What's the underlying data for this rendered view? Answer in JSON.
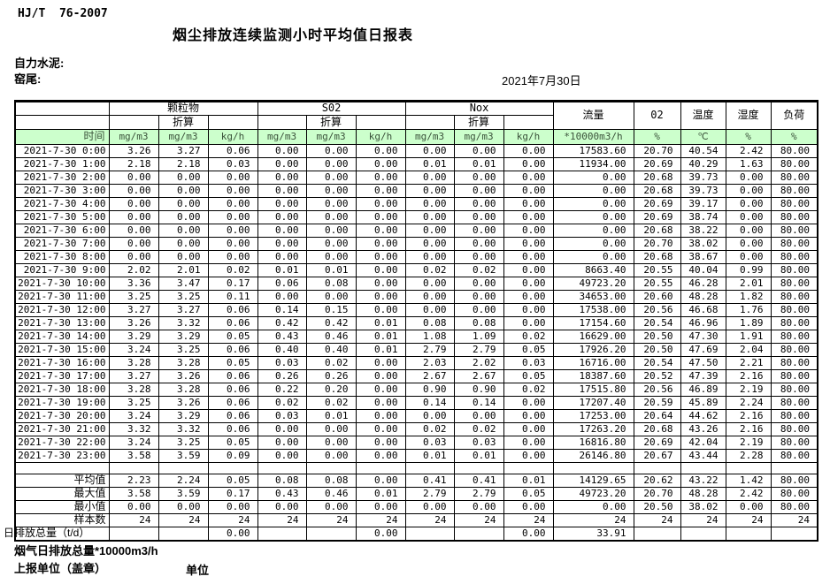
{
  "header": {
    "standard": "HJ/T  76-2007",
    "title": "烟尘排放连续监测小时平均值日报表",
    "company": "自力水泥:",
    "site": "窑尾:",
    "date": "2021年7月30日"
  },
  "table": {
    "group_headers": {
      "time": "时间",
      "pm": "颗粒物",
      "so2": "S02",
      "nox": "Nox",
      "converted": "折算",
      "flow": "流量",
      "o2": "02",
      "temperature": "温度",
      "humidity": "湿度",
      "load": "负荷"
    },
    "units": [
      "mg/m3",
      "mg/m3",
      "kg/h",
      "mg/m3",
      "mg/m3",
      "kg/h",
      "mg/m3",
      "mg/m3",
      "kg/h",
      "*10000m3/h",
      "%",
      "℃",
      "%",
      "%"
    ],
    "rows": [
      {
        "time": "2021-7-30 0:00",
        "values": [
          "3.26",
          "3.27",
          "0.06",
          "0.00",
          "0.00",
          "0.00",
          "0.00",
          "0.00",
          "0.00",
          "17583.60",
          "20.70",
          "40.54",
          "2.42",
          "80.00"
        ]
      },
      {
        "time": "2021-7-30 1:00",
        "values": [
          "2.18",
          "2.18",
          "0.03",
          "0.00",
          "0.00",
          "0.00",
          "0.01",
          "0.01",
          "0.00",
          "11934.00",
          "20.69",
          "40.29",
          "1.63",
          "80.00"
        ]
      },
      {
        "time": "2021-7-30 2:00",
        "values": [
          "0.00",
          "0.00",
          "0.00",
          "0.00",
          "0.00",
          "0.00",
          "0.00",
          "0.00",
          "0.00",
          "0.00",
          "20.68",
          "39.73",
          "0.00",
          "80.00"
        ]
      },
      {
        "time": "2021-7-30 3:00",
        "values": [
          "0.00",
          "0.00",
          "0.00",
          "0.00",
          "0.00",
          "0.00",
          "0.00",
          "0.00",
          "0.00",
          "0.00",
          "20.68",
          "39.73",
          "0.00",
          "80.00"
        ]
      },
      {
        "time": "2021-7-30 4:00",
        "values": [
          "0.00",
          "0.00",
          "0.00",
          "0.00",
          "0.00",
          "0.00",
          "0.00",
          "0.00",
          "0.00",
          "0.00",
          "20.69",
          "39.17",
          "0.00",
          "80.00"
        ]
      },
      {
        "time": "2021-7-30 5:00",
        "values": [
          "0.00",
          "0.00",
          "0.00",
          "0.00",
          "0.00",
          "0.00",
          "0.00",
          "0.00",
          "0.00",
          "0.00",
          "20.69",
          "38.74",
          "0.00",
          "80.00"
        ]
      },
      {
        "time": "2021-7-30 6:00",
        "values": [
          "0.00",
          "0.00",
          "0.00",
          "0.00",
          "0.00",
          "0.00",
          "0.00",
          "0.00",
          "0.00",
          "0.00",
          "20.68",
          "38.22",
          "0.00",
          "80.00"
        ]
      },
      {
        "time": "2021-7-30 7:00",
        "values": [
          "0.00",
          "0.00",
          "0.00",
          "0.00",
          "0.00",
          "0.00",
          "0.00",
          "0.00",
          "0.00",
          "0.00",
          "20.70",
          "38.02",
          "0.00",
          "80.00"
        ]
      },
      {
        "time": "2021-7-30 8:00",
        "values": [
          "0.00",
          "0.00",
          "0.00",
          "0.00",
          "0.00",
          "0.00",
          "0.00",
          "0.00",
          "0.00",
          "0.00",
          "20.68",
          "38.67",
          "0.00",
          "80.00"
        ]
      },
      {
        "time": "2021-7-30 9:00",
        "values": [
          "2.02",
          "2.01",
          "0.02",
          "0.01",
          "0.01",
          "0.00",
          "0.02",
          "0.02",
          "0.00",
          "8663.40",
          "20.55",
          "40.04",
          "0.99",
          "80.00"
        ]
      },
      {
        "time": "2021-7-30 10:00",
        "values": [
          "3.36",
          "3.47",
          "0.17",
          "0.06",
          "0.08",
          "0.00",
          "0.00",
          "0.00",
          "0.00",
          "49723.20",
          "20.55",
          "46.28",
          "2.01",
          "80.00"
        ]
      },
      {
        "time": "2021-7-30 11:00",
        "values": [
          "3.25",
          "3.25",
          "0.11",
          "0.00",
          "0.00",
          "0.00",
          "0.00",
          "0.00",
          "0.00",
          "34653.00",
          "20.60",
          "48.28",
          "1.82",
          "80.00"
        ]
      },
      {
        "time": "2021-7-30 12:00",
        "values": [
          "3.27",
          "3.27",
          "0.06",
          "0.14",
          "0.15",
          "0.00",
          "0.00",
          "0.00",
          "0.00",
          "17538.00",
          "20.56",
          "46.68",
          "1.76",
          "80.00"
        ]
      },
      {
        "time": "2021-7-30 13:00",
        "values": [
          "3.26",
          "3.32",
          "0.06",
          "0.42",
          "0.42",
          "0.01",
          "0.08",
          "0.08",
          "0.00",
          "17154.60",
          "20.54",
          "46.96",
          "1.89",
          "80.00"
        ]
      },
      {
        "time": "2021-7-30 14:00",
        "values": [
          "3.29",
          "3.29",
          "0.05",
          "0.43",
          "0.46",
          "0.01",
          "1.08",
          "1.09",
          "0.02",
          "16629.00",
          "20.50",
          "47.30",
          "1.91",
          "80.00"
        ]
      },
      {
        "time": "2021-7-30 15:00",
        "values": [
          "3.24",
          "3.25",
          "0.06",
          "0.40",
          "0.40",
          "0.01",
          "2.79",
          "2.79",
          "0.05",
          "17926.20",
          "20.50",
          "47.69",
          "2.04",
          "80.00"
        ]
      },
      {
        "time": "2021-7-30 16:00",
        "values": [
          "3.28",
          "3.28",
          "0.05",
          "0.03",
          "0.02",
          "0.00",
          "2.03",
          "2.02",
          "0.03",
          "16716.00",
          "20.54",
          "47.50",
          "2.21",
          "80.00"
        ]
      },
      {
        "time": "2021-7-30 17:00",
        "values": [
          "3.27",
          "3.26",
          "0.06",
          "0.26",
          "0.26",
          "0.00",
          "2.67",
          "2.67",
          "0.05",
          "18387.60",
          "20.52",
          "47.39",
          "2.16",
          "80.00"
        ]
      },
      {
        "time": "2021-7-30 18:00",
        "values": [
          "3.28",
          "3.28",
          "0.06",
          "0.22",
          "0.20",
          "0.00",
          "0.90",
          "0.90",
          "0.02",
          "17515.80",
          "20.56",
          "46.89",
          "2.19",
          "80.00"
        ]
      },
      {
        "time": "2021-7-30 19:00",
        "values": [
          "3.25",
          "3.26",
          "0.06",
          "0.02",
          "0.02",
          "0.00",
          "0.14",
          "0.14",
          "0.00",
          "17207.40",
          "20.59",
          "45.89",
          "2.24",
          "80.00"
        ]
      },
      {
        "time": "2021-7-30 20:00",
        "values": [
          "3.24",
          "3.29",
          "0.06",
          "0.03",
          "0.01",
          "0.00",
          "0.00",
          "0.00",
          "0.00",
          "17253.00",
          "20.64",
          "44.62",
          "2.16",
          "80.00"
        ]
      },
      {
        "time": "2021-7-30 21:00",
        "values": [
          "3.32",
          "3.32",
          "0.06",
          "0.00",
          "0.00",
          "0.00",
          "0.02",
          "0.02",
          "0.00",
          "17263.20",
          "20.68",
          "43.26",
          "2.16",
          "80.00"
        ]
      },
      {
        "time": "2021-7-30 22:00",
        "values": [
          "3.24",
          "3.25",
          "0.05",
          "0.00",
          "0.00",
          "0.00",
          "0.03",
          "0.03",
          "0.00",
          "16816.80",
          "20.69",
          "42.04",
          "2.19",
          "80.00"
        ]
      },
      {
        "time": "2021-7-30 23:00",
        "values": [
          "3.58",
          "3.59",
          "0.09",
          "0.00",
          "0.00",
          "0.00",
          "0.01",
          "0.01",
          "0.00",
          "26146.80",
          "20.67",
          "43.44",
          "2.28",
          "80.00"
        ]
      }
    ],
    "summary": [
      {
        "label": "平均值",
        "values": [
          "2.23",
          "2.24",
          "0.05",
          "0.08",
          "0.08",
          "0.00",
          "0.41",
          "0.41",
          "0.01",
          "14129.65",
          "20.62",
          "43.22",
          "1.42",
          "80.00"
        ]
      },
      {
        "label": "最大值",
        "values": [
          "3.58",
          "3.59",
          "0.17",
          "0.43",
          "0.46",
          "0.01",
          "2.79",
          "2.79",
          "0.05",
          "49723.20",
          "20.70",
          "48.28",
          "2.42",
          "80.00"
        ]
      },
      {
        "label": "最小值",
        "values": [
          "0.00",
          "0.00",
          "0.00",
          "0.00",
          "0.00",
          "0.00",
          "0.00",
          "0.00",
          "0.00",
          "0.00",
          "20.50",
          "38.02",
          "0.00",
          "80.00"
        ]
      },
      {
        "label": "样本数",
        "values": [
          "24",
          "24",
          "24",
          "24",
          "24",
          "24",
          "24",
          "24",
          "24",
          "24",
          "24",
          "24",
          "24",
          "24"
        ]
      },
      {
        "label": "日排放总量（t/d）",
        "values": [
          "",
          "",
          "0.00",
          "",
          "",
          "0.00",
          "",
          "",
          "0.00",
          "33.91",
          "",
          "",
          "",
          ""
        ]
      }
    ]
  },
  "footer": {
    "line1": "烟气日排放总量*10000m3/h",
    "line2": "上报单位（盖章）",
    "line3": "单位"
  }
}
